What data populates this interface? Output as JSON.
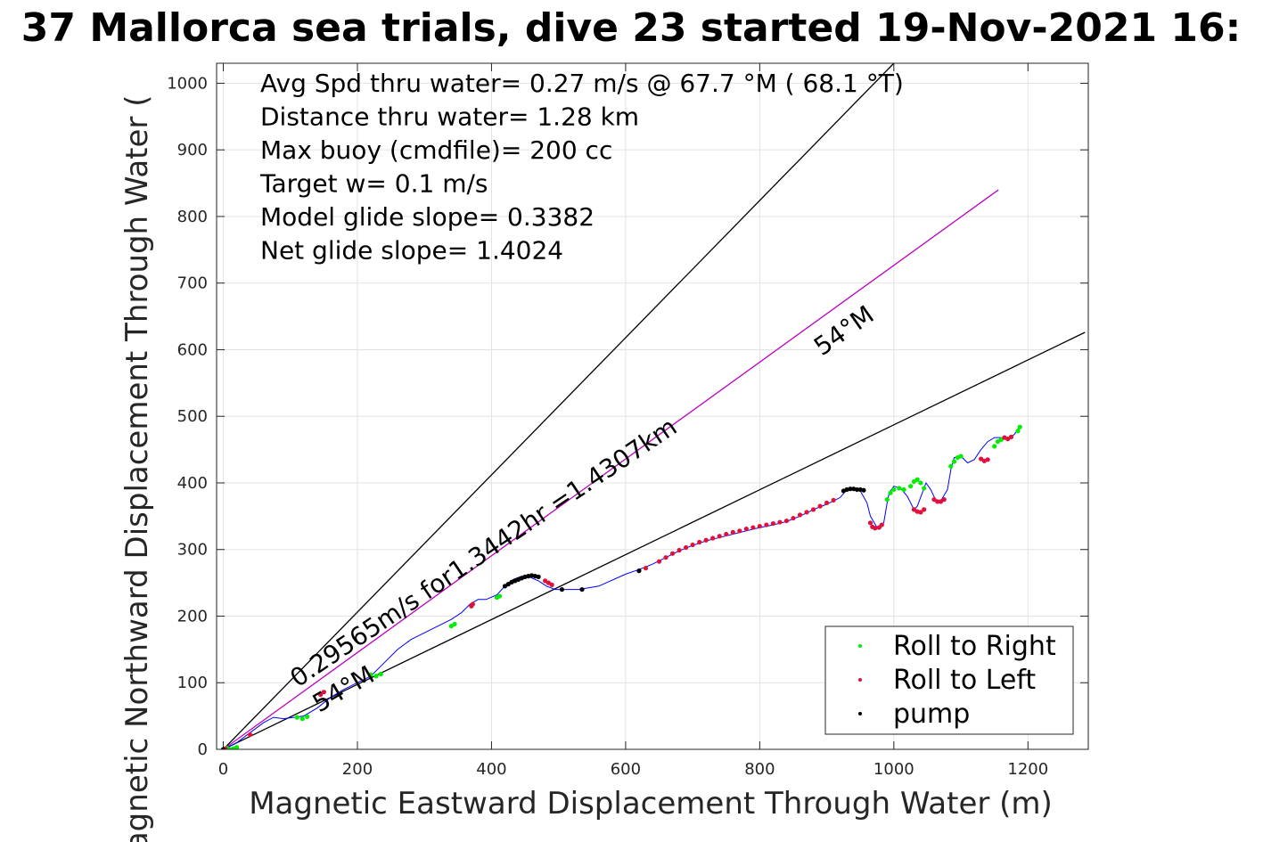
{
  "chart_data": {
    "type": "scatter",
    "title": "37 Mallorca sea trials, dive 23 started 19-Nov-2021 16:",
    "xlabel": "Magnetic Eastward Displacement Through Water (m)",
    "ylabel": "Magnetic Northward Displacement Through Water (",
    "xlim": [
      -10,
      1290
    ],
    "ylim": [
      0,
      1030
    ],
    "xticks": [
      0,
      200,
      400,
      600,
      800,
      1000,
      1200
    ],
    "yticks": [
      0,
      100,
      200,
      300,
      400,
      500,
      600,
      700,
      800,
      900,
      1000
    ],
    "grid": true,
    "info_lines": [
      "Avg Spd thru water=  0.27 m/s @  67.7 °M ( 68.1 °T)",
      "Distance thru water=  1.28 km",
      "Max buoy (cmdfile)= 200 cc",
      "Target w= 0.1 m/s",
      "Model glide slope= 0.3382",
      "Net glide slope= 1.4024"
    ],
    "annotations": {
      "speed": "0.29565m/s for1.3442hr =1.4307km",
      "heading_upper": "54°M",
      "heading_lower": "54°M"
    },
    "reference_lines": [
      {
        "name": "upper bound",
        "color": "#000000",
        "x": [
          0,
          1000
        ],
        "y": [
          0,
          1030
        ]
      },
      {
        "name": "predicted track",
        "color": "#c000c0",
        "x": [
          0,
          1156
        ],
        "y": [
          0,
          840
        ]
      },
      {
        "name": "lower bound",
        "color": "#000000",
        "x": [
          0,
          1285
        ],
        "y": [
          0,
          626
        ]
      }
    ],
    "track": {
      "name": "track",
      "color": "#0000ff",
      "x": [
        0,
        20,
        40,
        60,
        75,
        90,
        105,
        120,
        140,
        160,
        180,
        200,
        220,
        240,
        260,
        280,
        300,
        320,
        340,
        355,
        368,
        380,
        392,
        408,
        420,
        432,
        445,
        458,
        470,
        482,
        495,
        510,
        530,
        560,
        600,
        620,
        640,
        660,
        680,
        700,
        720,
        740,
        760,
        780,
        800,
        820,
        840,
        860,
        880,
        900,
        920,
        930,
        940,
        950,
        960,
        965,
        975,
        985,
        990,
        993,
        1000,
        1010,
        1020,
        1030,
        1035,
        1048,
        1055,
        1062,
        1070,
        1080,
        1085,
        1090,
        1100,
        1110,
        1120,
        1130,
        1140,
        1150,
        1160,
        1170,
        1180,
        1188
      ],
      "y": [
        0,
        10,
        25,
        40,
        48,
        46,
        48,
        50,
        62,
        78,
        90,
        100,
        110,
        130,
        150,
        165,
        175,
        185,
        195,
        205,
        218,
        225,
        225,
        232,
        245,
        255,
        260,
        258,
        253,
        245,
        240,
        240,
        240,
        245,
        263,
        270,
        278,
        288,
        298,
        306,
        313,
        318,
        323,
        328,
        333,
        337,
        342,
        350,
        360,
        368,
        378,
        390,
        392,
        388,
        370,
        350,
        333,
        340,
        370,
        385,
        395,
        392,
        380,
        360,
        365,
        400,
        390,
        375,
        373,
        390,
        420,
        438,
        440,
        430,
        435,
        450,
        462,
        468,
        468,
        465,
        473,
        485
      ]
    },
    "series": [
      {
        "name": "Roll to Right",
        "color": "#00ee00",
        "x": [
          5,
          10,
          15,
          20,
          110,
          118,
          125,
          220,
          228,
          235,
          340,
          345,
          408,
          412,
          990,
          995,
          1000,
          1008,
          1015,
          1025,
          1030,
          1035,
          1040,
          1045,
          1085,
          1090,
          1095,
          1100,
          1150,
          1155,
          1160,
          1185,
          1188
        ],
        "y": [
          2,
          0,
          1,
          3,
          48,
          46,
          49,
          112,
          110,
          113,
          185,
          188,
          228,
          230,
          375,
          385,
          390,
          392,
          390,
          395,
          402,
          405,
          400,
          392,
          425,
          432,
          438,
          440,
          455,
          462,
          465,
          478,
          484
        ]
      },
      {
        "name": "Roll to Left",
        "color": "#e0103c",
        "x": [
          3,
          40,
          145,
          150,
          370,
          372,
          480,
          485,
          490,
          630,
          650,
          660,
          670,
          680,
          690,
          700,
          710,
          720,
          730,
          740,
          750,
          760,
          770,
          780,
          790,
          800,
          810,
          820,
          830,
          840,
          850,
          860,
          870,
          880,
          890,
          900,
          910,
          965,
          968,
          972,
          978,
          982,
          1030,
          1035,
          1040,
          1045,
          1060,
          1065,
          1070,
          1075,
          1130,
          1135,
          1140,
          1165,
          1170,
          1175
        ],
        "y": [
          1,
          22,
          82,
          86,
          215,
          218,
          253,
          250,
          247,
          272,
          282,
          288,
          294,
          299,
          303,
          307,
          311,
          314,
          317,
          320,
          323,
          326,
          328,
          331,
          333,
          335,
          337,
          339,
          341,
          343,
          347,
          352,
          356,
          360,
          365,
          370,
          374,
          340,
          334,
          332,
          333,
          337,
          360,
          357,
          356,
          360,
          375,
          372,
          372,
          375,
          436,
          433,
          435,
          468,
          466,
          469
        ]
      },
      {
        "name": "pump",
        "color": "#000000",
        "x": [
          0,
          420,
          425,
          430,
          435,
          440,
          445,
          450,
          455,
          460,
          465,
          470,
          505,
          535,
          620,
          925,
          930,
          935,
          940,
          945,
          950,
          955
        ],
        "y": [
          0,
          245,
          248,
          251,
          253,
          255,
          257,
          259,
          260,
          261,
          260,
          259,
          240,
          240,
          268,
          388,
          390,
          391,
          391,
          390,
          390,
          389
        ]
      }
    ],
    "legend": {
      "location": "bottom-right",
      "entries": [
        "Roll to Right",
        "Roll to Left",
        "pump"
      ]
    }
  }
}
